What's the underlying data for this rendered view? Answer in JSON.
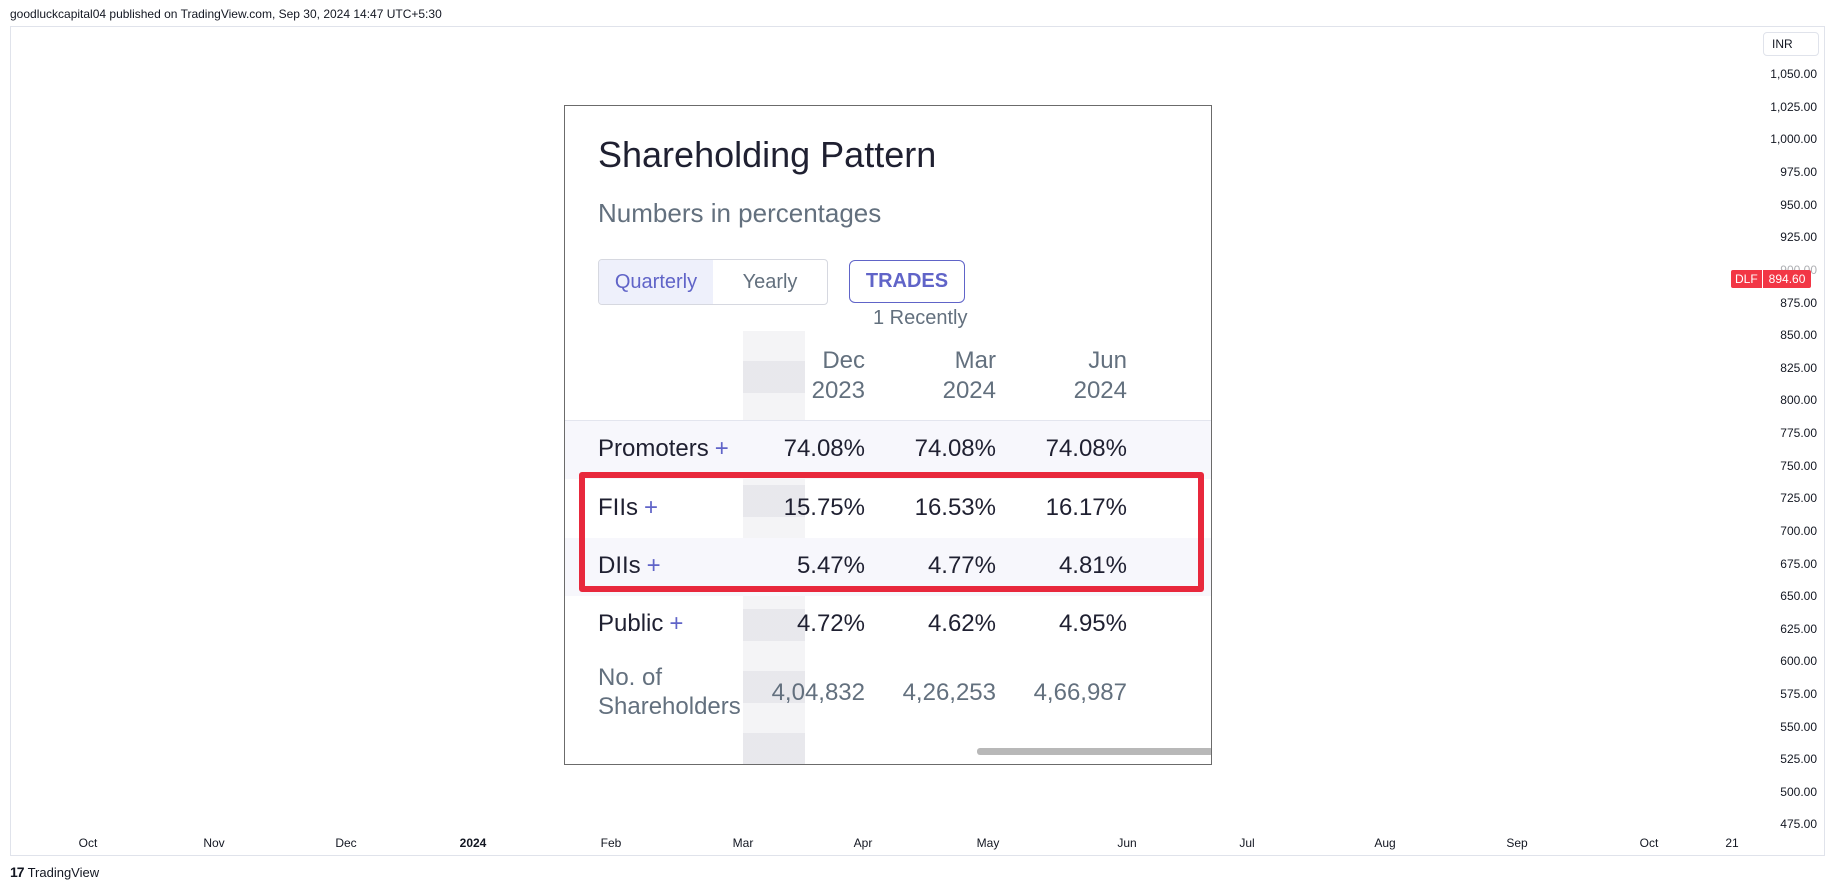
{
  "header": {
    "publish_line": "goodluckcapital04 published on TradingView.com, Sep 30, 2024 14:47 UTC+5:30"
  },
  "price_axis": {
    "currency": "INR",
    "ticks": [
      "1,050.00",
      "1,025.00",
      "1,000.00",
      "975.00",
      "950.00",
      "925.00",
      "900.00",
      "875.00",
      "850.00",
      "825.00",
      "800.00",
      "775.00",
      "750.00",
      "725.00",
      "700.00",
      "675.00",
      "650.00",
      "625.00",
      "600.00",
      "575.00",
      "550.00",
      "525.00",
      "500.00",
      "475.00"
    ],
    "current_symbol": "DLF",
    "current_price": "894.60"
  },
  "time_axis": {
    "ticks": [
      {
        "label": "Oct",
        "bold": false
      },
      {
        "label": "Nov",
        "bold": false
      },
      {
        "label": "Dec",
        "bold": false
      },
      {
        "label": "2024",
        "bold": true
      },
      {
        "label": "Feb",
        "bold": false
      },
      {
        "label": "Mar",
        "bold": false
      },
      {
        "label": "Apr",
        "bold": false
      },
      {
        "label": "May",
        "bold": false
      },
      {
        "label": "Jun",
        "bold": false
      },
      {
        "label": "Jul",
        "bold": false
      },
      {
        "label": "Aug",
        "bold": false
      },
      {
        "label": "Sep",
        "bold": false
      },
      {
        "label": "Oct",
        "bold": false
      },
      {
        "label": "21",
        "bold": false
      }
    ]
  },
  "footer": {
    "logo_mark": "17",
    "logo_text": "TradingView"
  },
  "card": {
    "title": "Shareholding Pattern",
    "subtitle": "Numbers in percentages",
    "toggle": {
      "quarterly": "Quarterly",
      "yearly": "Yearly"
    },
    "trades_label": "TRADES",
    "trades_sub": "1 Recently",
    "columns": [
      {
        "l1": "Dec",
        "l2": "2023"
      },
      {
        "l1": "Mar",
        "l2": "2024"
      },
      {
        "l1": "Jun",
        "l2": "2024"
      }
    ],
    "rows": [
      {
        "label": "Promoters",
        "values": [
          "74.08%",
          "74.08%",
          "74.08%"
        ]
      },
      {
        "label": "FIIs",
        "values": [
          "15.75%",
          "16.53%",
          "16.17%"
        ]
      },
      {
        "label": "DIIs",
        "values": [
          "5.47%",
          "4.77%",
          "4.81%"
        ]
      },
      {
        "label": "Public",
        "values": [
          "4.72%",
          "4.62%",
          "4.95%"
        ]
      }
    ],
    "shareholders": {
      "l1": "No. of",
      "l2": "Shareholders",
      "values": [
        "4,04,832",
        "4,26,253",
        "4,66,987"
      ]
    },
    "plus": "+"
  }
}
